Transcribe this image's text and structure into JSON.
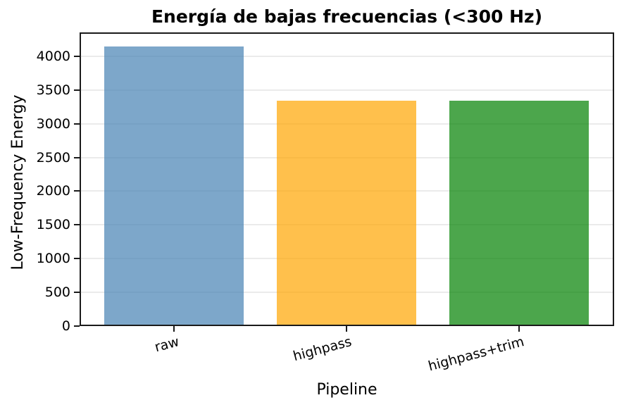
{
  "chart_data": {
    "type": "bar",
    "title": "Energía de bajas frecuencias (<300 Hz)",
    "xlabel": "Pipeline",
    "ylabel": "Low-Frequency Energy",
    "categories": [
      "raw",
      "highpass",
      "highpass+trim"
    ],
    "values": [
      4150,
      3340,
      3340
    ],
    "bar_colors": [
      "#4682b4",
      "#ffa500",
      "#008000"
    ],
    "bar_alpha": 0.7,
    "ylim": [
      0,
      4355
    ],
    "yticks": [
      0,
      500,
      1000,
      1500,
      2000,
      2500,
      3000,
      3500,
      4000
    ],
    "grid": "y",
    "grid_color": "#ebebeb",
    "axis_color": "#1a1a1a",
    "text_color": "#000000",
    "xtick_rotation_deg": 15,
    "legend_visible": false
  }
}
